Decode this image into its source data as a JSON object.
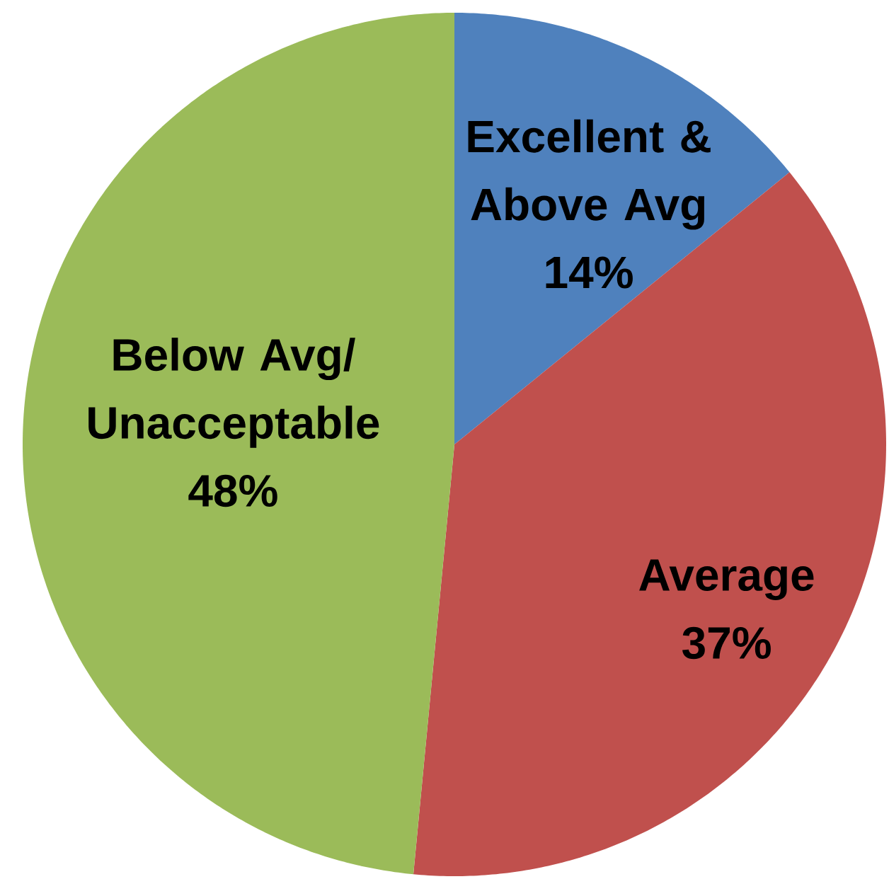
{
  "chart_data": {
    "type": "pie",
    "categories": [
      "Excellent & Above Avg",
      "Average",
      "Below Avg/Unacceptable"
    ],
    "values": [
      14,
      37,
      48
    ],
    "value_labels": [
      "14%",
      "37%",
      "48%"
    ],
    "colors": [
      "#4f81bd",
      "#c0504d",
      "#9bbb59"
    ]
  }
}
